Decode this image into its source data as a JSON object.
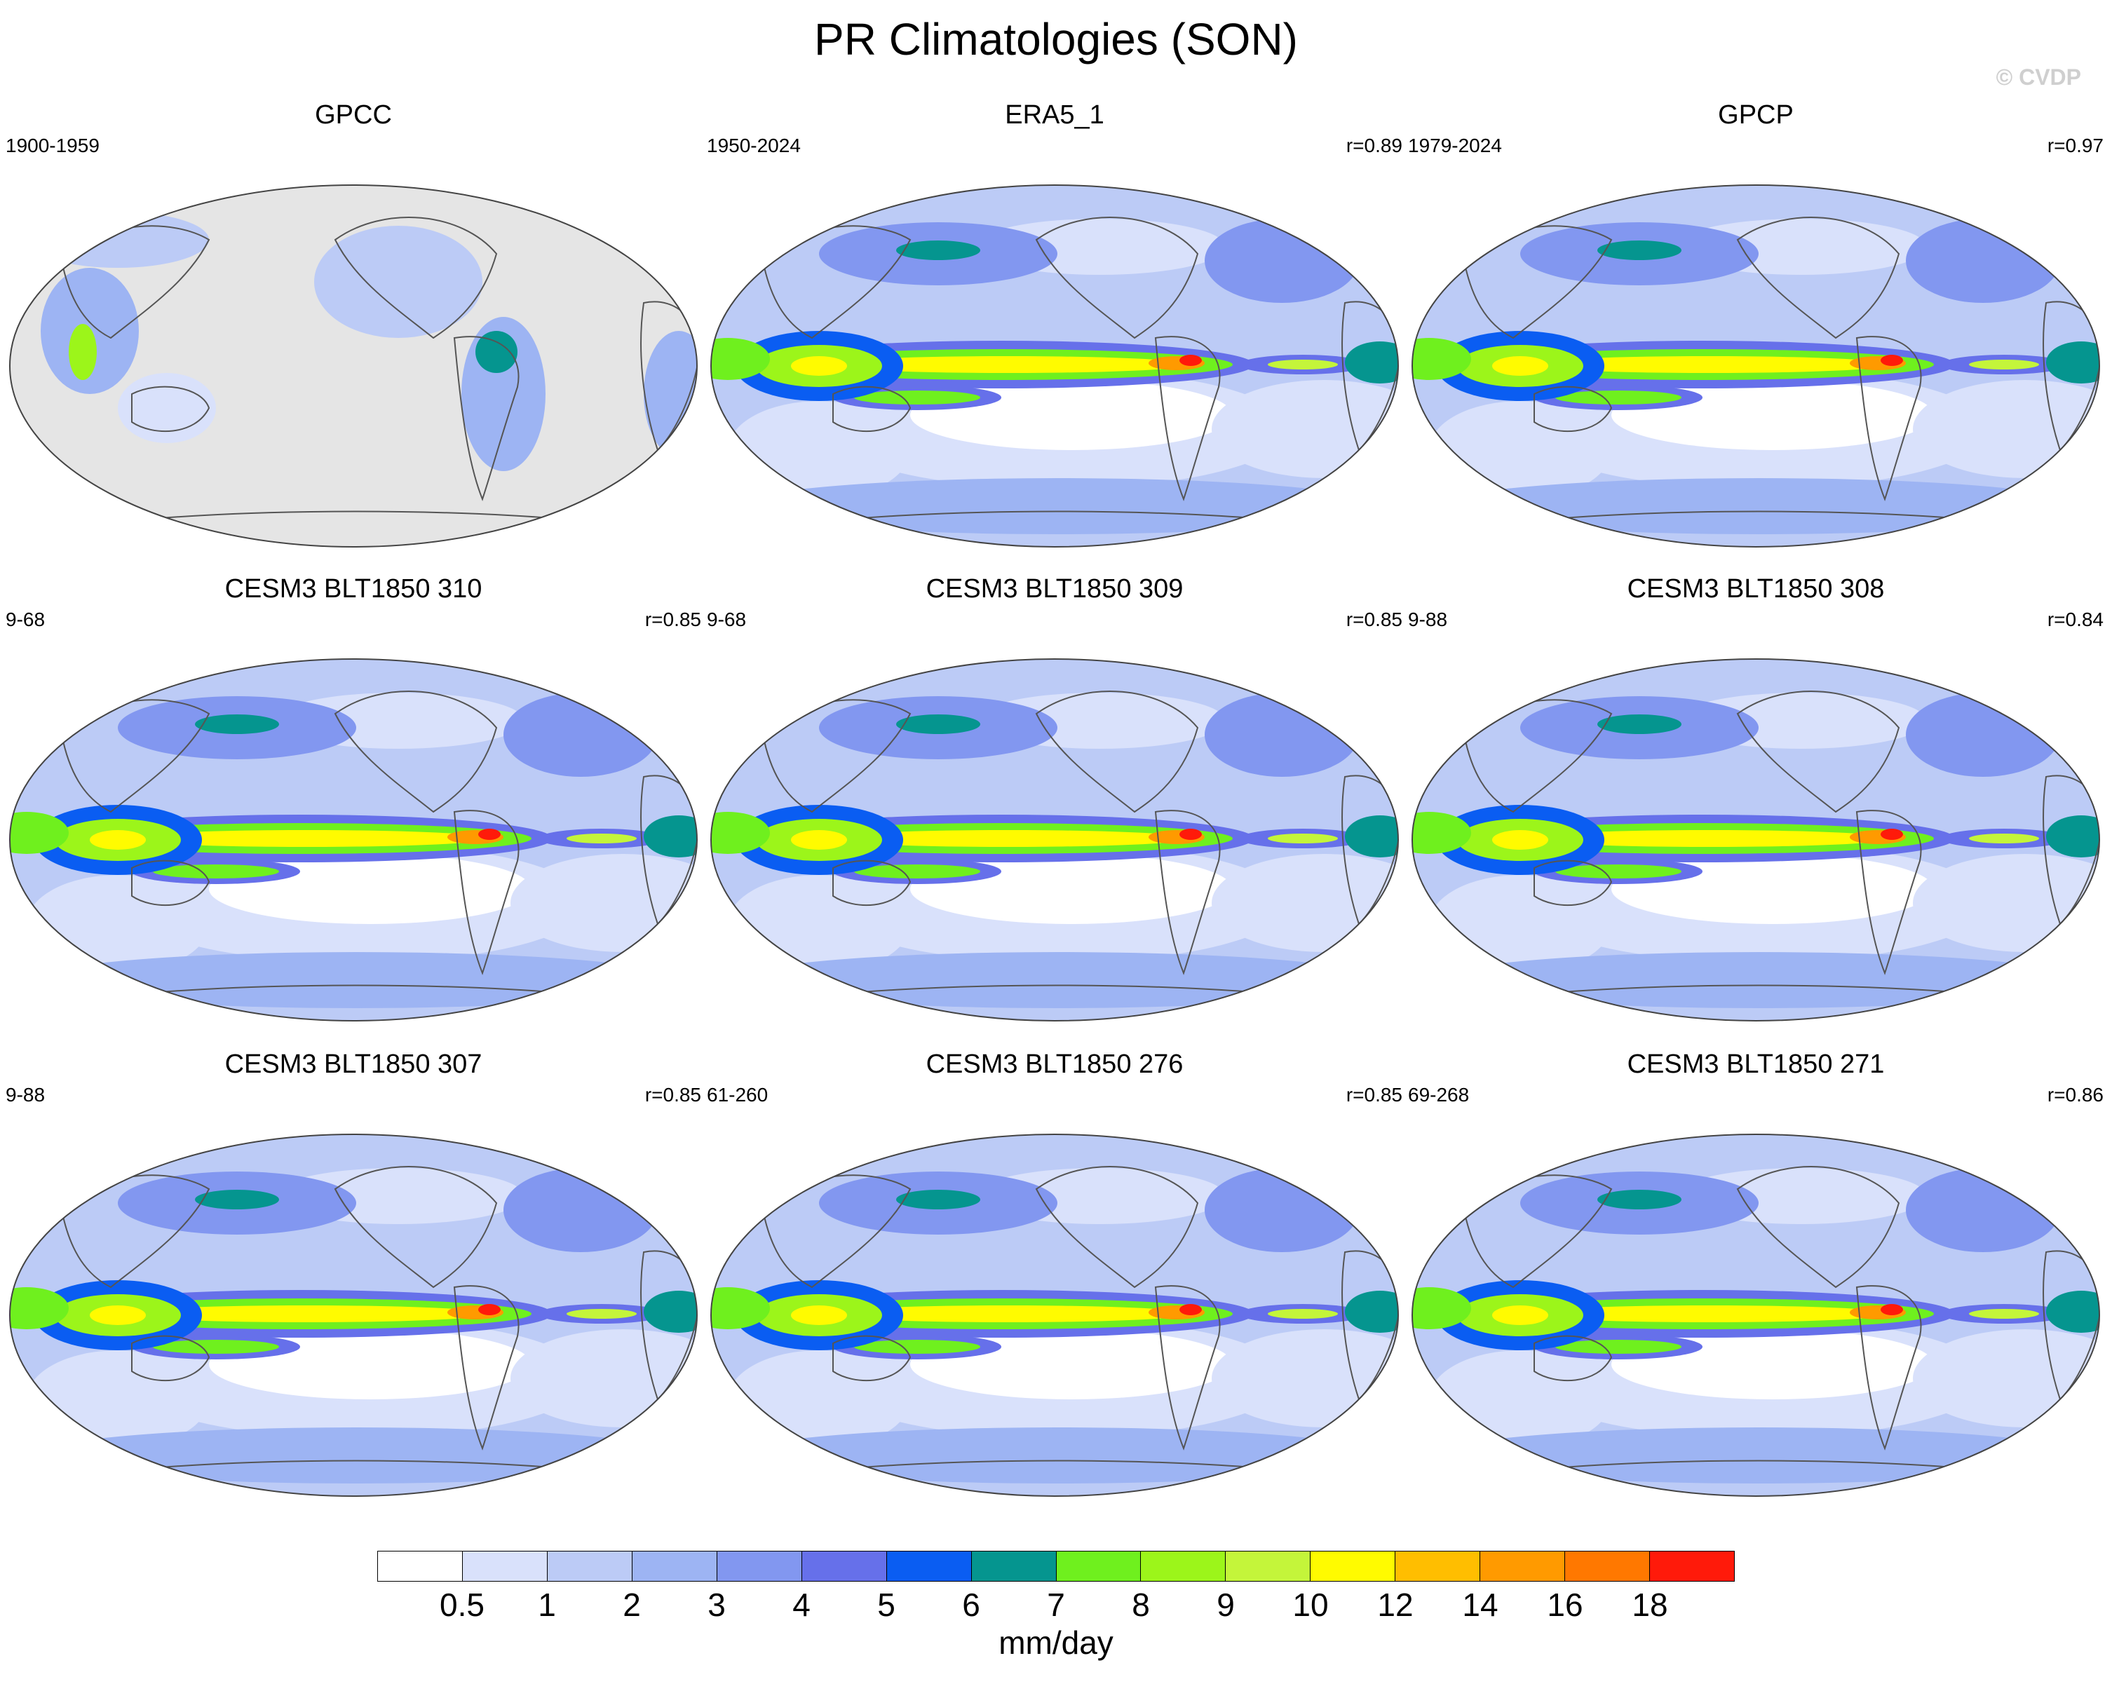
{
  "title": "PR Climatologies (SON)",
  "watermark": "© CVDP",
  "panels": [
    {
      "name": "GPCC",
      "years": "1900-1959",
      "r": "",
      "land_only": true
    },
    {
      "name": "ERA5_1",
      "years": "1950-2024",
      "r": "r=0.89",
      "land_only": false
    },
    {
      "name": "GPCP",
      "years": "1979-2024",
      "r": "r=0.97",
      "land_only": false
    },
    {
      "name": "CESM3 BLT1850 310",
      "years": "9-68",
      "r": "r=0.85",
      "land_only": false
    },
    {
      "name": "CESM3 BLT1850 309",
      "years": "9-68",
      "r": "r=0.85",
      "land_only": false
    },
    {
      "name": "CESM3 BLT1850 308",
      "years": "9-88",
      "r": "r=0.84",
      "land_only": false
    },
    {
      "name": "CESM3 BLT1850 307",
      "years": "9-88",
      "r": "r=0.85",
      "land_only": false
    },
    {
      "name": "CESM3 BLT1850 276",
      "years": "61-260",
      "r": "r=0.85",
      "land_only": false
    },
    {
      "name": "CESM3 BLT1850 271",
      "years": "69-268",
      "r": "r=0.86",
      "land_only": false
    }
  ],
  "colorbar": {
    "levels": [
      "0.5",
      "1",
      "2",
      "3",
      "4",
      "5",
      "6",
      "7",
      "8",
      "9",
      "10",
      "12",
      "14",
      "16",
      "18"
    ],
    "colors": [
      "#ffffff",
      "#d9e1fb",
      "#bccbf6",
      "#9db4f3",
      "#8297f0",
      "#6670ea",
      "#0a5df2",
      "#05958f",
      "#6ff01e",
      "#9cf51a",
      "#c4f53a",
      "#fffb00",
      "#ffbe00",
      "#ff9a00",
      "#ff7800",
      "#ff1a0a"
    ],
    "units": "mm/day"
  }
}
